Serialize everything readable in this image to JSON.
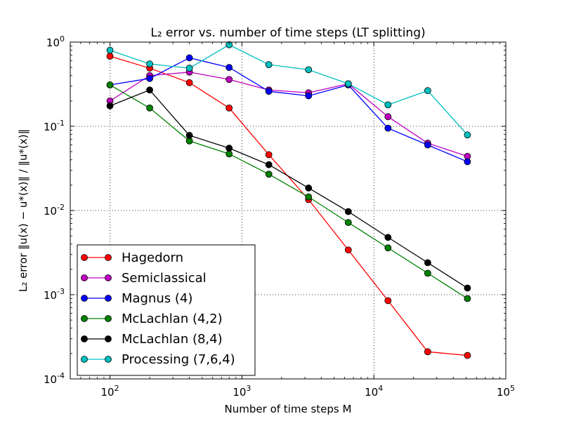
{
  "chart_data": {
    "type": "line",
    "title": "L₂ error vs. number of time steps (LT splitting)",
    "xlabel": "Number of time steps M",
    "ylabel": "L₂ error  ‖u(x) − u*(x)‖ / ‖u*(x)‖",
    "x_scale": "log",
    "y_scale": "log",
    "xlim": [
      50,
      100000
    ],
    "ylim": [
      0.0001,
      1
    ],
    "grid": true,
    "legend_position": "lower-left",
    "x_ticks": [
      {
        "value": 100,
        "base": "10",
        "exp": "2"
      },
      {
        "value": 1000,
        "base": "10",
        "exp": "3"
      },
      {
        "value": 10000,
        "base": "10",
        "exp": "4"
      },
      {
        "value": 100000,
        "base": "10",
        "exp": "5"
      }
    ],
    "y_ticks": [
      {
        "value": 0.0001,
        "base": "10",
        "exp": "-4"
      },
      {
        "value": 0.001,
        "base": "10",
        "exp": "-3"
      },
      {
        "value": 0.01,
        "base": "10",
        "exp": "-2"
      },
      {
        "value": 0.1,
        "base": "10",
        "exp": "-1"
      },
      {
        "value": 1,
        "base": "10",
        "exp": "0"
      }
    ],
    "x": [
      100,
      200,
      400,
      800,
      1600,
      3200,
      6400,
      12800,
      25600,
      51200
    ],
    "series": [
      {
        "name": "Hagedorn",
        "color": "#ff0000",
        "values": [
          0.68,
          0.49,
          0.33,
          0.165,
          0.046,
          0.0135,
          0.0034,
          0.00085,
          0.00021,
          0.00019
        ]
      },
      {
        "name": "Semiclassical",
        "color": "#bf00bf",
        "values": [
          0.2,
          0.4,
          0.44,
          0.36,
          0.27,
          0.25,
          0.32,
          0.13,
          0.063,
          0.044
        ]
      },
      {
        "name": "Magnus (4)",
        "color": "#0000ff",
        "values": [
          0.31,
          0.37,
          0.65,
          0.5,
          0.26,
          0.23,
          0.31,
          0.095,
          0.06,
          0.038
        ]
      },
      {
        "name": "McLachlan (4,2)",
        "color": "#008000",
        "values": [
          0.31,
          0.165,
          0.067,
          0.047,
          0.027,
          0.0145,
          0.0072,
          0.0036,
          0.0018,
          0.0009
        ]
      },
      {
        "name": "McLachlan (8,4)",
        "color": "#000000",
        "values": [
          0.175,
          0.27,
          0.078,
          0.055,
          0.035,
          0.0185,
          0.0097,
          0.0048,
          0.0024,
          0.0012
        ]
      },
      {
        "name": "Processing (7,6,4)",
        "color": "#00bfbf",
        "values": [
          0.8,
          0.55,
          0.49,
          0.93,
          0.54,
          0.47,
          0.32,
          0.18,
          0.265,
          0.079
        ]
      }
    ]
  }
}
